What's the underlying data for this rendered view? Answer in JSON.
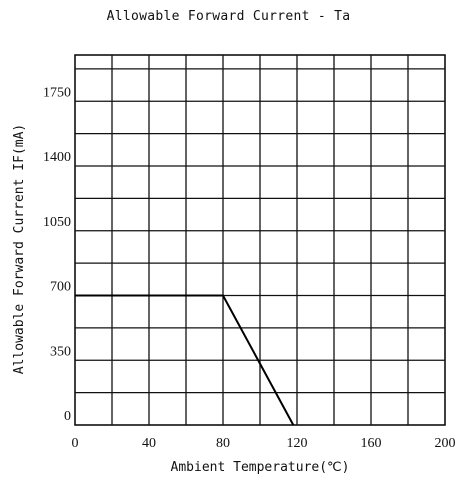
{
  "chart_data": {
    "type": "line",
    "title": "Allowable Forward Current - Ta",
    "xlabel": "Ambient Temperature(℃)",
    "ylabel": "Allowable Forward Current IF(mA)",
    "xlim": [
      0,
      200
    ],
    "ylim": [
      0,
      2000
    ],
    "x_ticks": [
      0,
      40,
      80,
      120,
      160,
      200
    ],
    "y_ticks": [
      0,
      350,
      700,
      1050,
      1400,
      1750
    ],
    "x_grid_step": 20,
    "y_grid_step": 175,
    "grid": true,
    "series": [
      {
        "points": [
          {
            "x": 0,
            "y": 700
          },
          {
            "x": 80,
            "y": 700
          },
          {
            "x": 118,
            "y": 0
          }
        ]
      }
    ]
  }
}
